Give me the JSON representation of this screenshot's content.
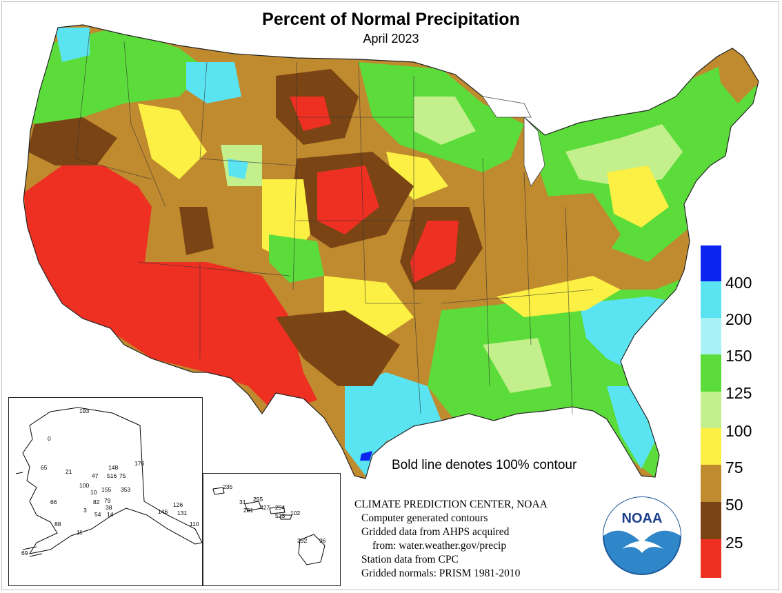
{
  "title": "Percent of Normal Precipitation",
  "subtitle": "April 2023",
  "note": "Bold line denotes 100% contour",
  "credits": [
    "CLIMATE PREDICTION CENTER, NOAA",
    "Computer generated contours",
    "Gridded data from AHPS acquired",
    "from: water.weather.gov/precip",
    "Station data from CPC",
    "Gridded normals: PRISM 1981-2010"
  ],
  "logo_text": "NOAA",
  "legend": {
    "labels": [
      "400",
      "200",
      "150",
      "125",
      "100",
      "75",
      "50",
      "25"
    ],
    "colors": [
      "#0b24f0",
      "#5ae4f2",
      "#a8f2f6",
      "#5bdc3b",
      "#c3f08c",
      "#fbf043",
      "#c08a2f",
      "#7a4414",
      "#ee3022"
    ]
  },
  "alaska_stations": [
    "193",
    "0",
    "65",
    "21",
    "47",
    "148",
    "516",
    "75",
    "176",
    "100",
    "10",
    "155",
    "353",
    "66",
    "82",
    "79",
    "3",
    "38",
    "54",
    "14",
    "88",
    "11",
    "126",
    "146",
    "131",
    "110",
    "69"
  ],
  "hawaii_stations": [
    "235",
    "31",
    "255",
    "281",
    "427",
    "254",
    "523",
    "102",
    "292",
    "96"
  ]
}
